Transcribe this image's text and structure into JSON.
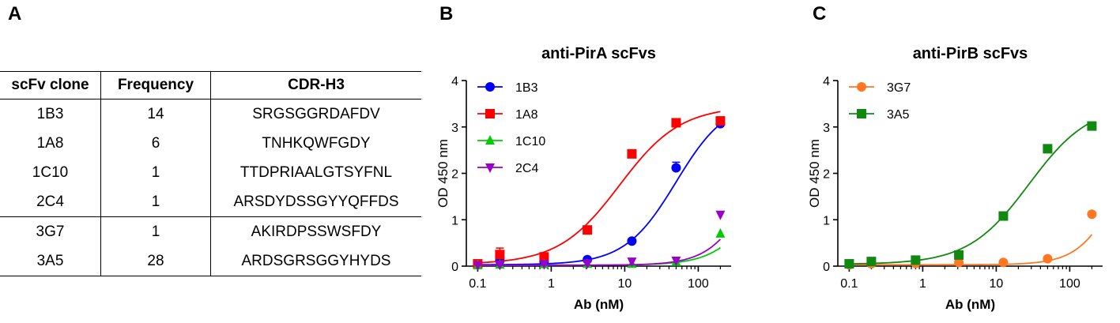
{
  "panels": {
    "a": "A",
    "b": "B",
    "c": "C"
  },
  "table": {
    "headers": [
      "scFv clone",
      "Frequency",
      "CDR-H3"
    ],
    "rows": [
      [
        "1B3",
        "14",
        "SRGSGGRDAFDV"
      ],
      [
        "1A8",
        "6",
        "TNHKQWFGDY"
      ],
      [
        "1C10",
        "1",
        "TTDPRIAALGTSYFNL"
      ],
      [
        "2C4",
        "1",
        "ARSDYDSSGYYQFFDS"
      ],
      [
        "3G7",
        "1",
        "AKIRDPSSWSFDY"
      ],
      [
        "3A5",
        "28",
        "ARDSGRSGGYHYDS"
      ]
    ]
  },
  "chart_data": [
    {
      "type": "scatter",
      "title": "anti-PirA scFvs",
      "xlabel": "Ab (nM)",
      "ylabel": "OD 450 nm",
      "xscale": "log",
      "xlim": [
        0.07,
        280
      ],
      "ylim": [
        0,
        4
      ],
      "xticks": [
        0.1,
        1,
        10,
        100
      ],
      "xtick_labels": [
        "0.1",
        "1",
        "10",
        "100"
      ],
      "yticks": [
        0,
        1,
        2,
        3,
        4
      ],
      "legend_position": "top-left",
      "x": [
        0.1,
        0.2,
        0.8,
        3.1,
        12.5,
        50,
        200
      ],
      "series": [
        {
          "name": "1B3",
          "color": "#0000ff",
          "marker": "circle",
          "values": [
            0.03,
            0.12,
            0.1,
            0.14,
            0.54,
            2.12,
            3.07
          ],
          "err": [
            0,
            0,
            0,
            0,
            0,
            0.12,
            0
          ],
          "fit": {
            "bottom": 0.03,
            "top": 3.6,
            "ec50": 50,
            "hill": 1.25
          }
        },
        {
          "name": "1A8",
          "color": "#ff0000",
          "marker": "square",
          "values": [
            0.05,
            0.25,
            0.2,
            0.78,
            2.42,
            3.09,
            3.13
          ],
          "err": [
            0,
            0.14,
            0,
            0,
            0,
            0,
            0
          ],
          "fit": {
            "bottom": 0.04,
            "top": 3.45,
            "ec50": 8.5,
            "hill": 1.05
          }
        },
        {
          "name": "1C10",
          "color": "#00cc00",
          "marker": "triangle-up",
          "values": [
            0.02,
            0.03,
            0.04,
            0.05,
            0.05,
            0.09,
            0.7
          ],
          "err": [
            0,
            0,
            0,
            0,
            0,
            0,
            0
          ],
          "fit": {
            "bottom": 0.02,
            "top": 3.5,
            "ec50": 900,
            "hill": 1.4
          }
        },
        {
          "name": "2C4",
          "color": "#9900cc",
          "marker": "triangle-down",
          "values": [
            0.02,
            0.03,
            0.05,
            0.06,
            0.1,
            0.12,
            1.11
          ],
          "err": [
            0,
            0,
            0,
            0,
            0,
            0,
            0
          ],
          "fit": {
            "bottom": 0.02,
            "top": 3.5,
            "ec50": 600,
            "hill": 1.5
          }
        }
      ]
    },
    {
      "type": "scatter",
      "title": "anti-PirB scFvs",
      "xlabel": "Ab (nM)",
      "ylabel": "OD 450 nm",
      "xscale": "log",
      "xlim": [
        0.07,
        280
      ],
      "ylim": [
        0,
        4
      ],
      "xticks": [
        0.1,
        1,
        10,
        100
      ],
      "xtick_labels": [
        "0.1",
        "1",
        "10",
        "100"
      ],
      "yticks": [
        0,
        1,
        2,
        3,
        4
      ],
      "legend_position": "top-left",
      "x": [
        0.1,
        0.2,
        0.8,
        3.1,
        12.5,
        50,
        200
      ],
      "series": [
        {
          "name": "3G7",
          "color": "#ff7722",
          "marker": "circle",
          "values": [
            0.03,
            0.05,
            0.06,
            0.08,
            0.08,
            0.16,
            1.12
          ],
          "err": [
            0,
            0,
            0,
            0,
            0,
            0,
            0
          ],
          "fit": {
            "bottom": 0.03,
            "top": 3.5,
            "ec50": 500,
            "hill": 1.6
          }
        },
        {
          "name": "3A5",
          "color": "#118811",
          "marker": "square",
          "values": [
            0.05,
            0.1,
            0.13,
            0.24,
            1.08,
            2.53,
            3.02
          ],
          "err": [
            0,
            0,
            0,
            0,
            0,
            0,
            0
          ],
          "fit": {
            "bottom": 0.04,
            "top": 3.5,
            "ec50": 28,
            "hill": 1.05
          }
        }
      ]
    }
  ]
}
